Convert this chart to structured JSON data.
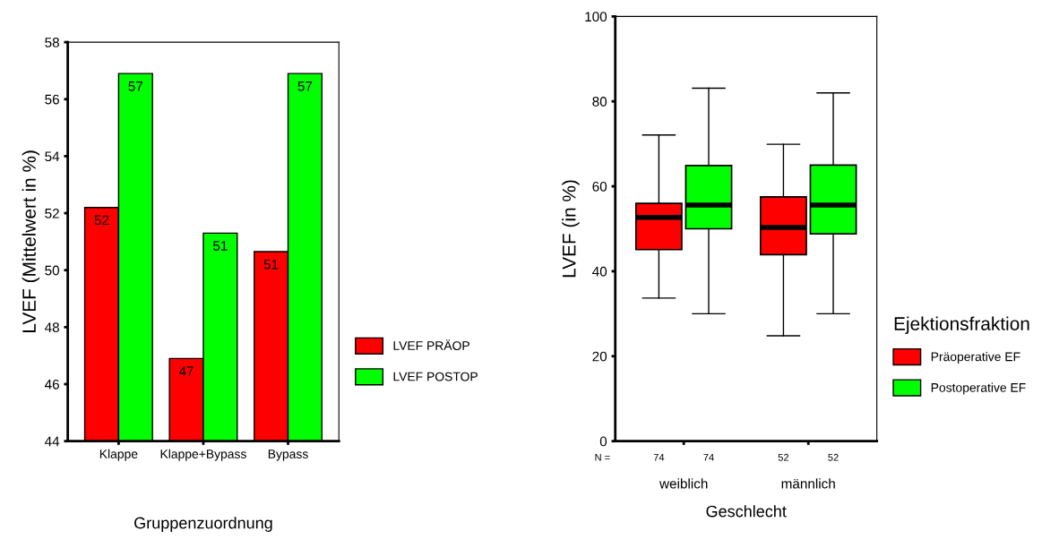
{
  "chart_data": [
    {
      "type": "bar",
      "categories": [
        "Klappe",
        "Klappe+Bypass",
        "Bypass"
      ],
      "ylabel": "LVEF (Mittelwert in %)",
      "xlabel": "Gruppenzuordnung",
      "ylim": [
        44,
        58
      ],
      "yticks": [
        44,
        46,
        48,
        50,
        52,
        54,
        56,
        58
      ],
      "legend": "right",
      "grid": false,
      "series": [
        {
          "name": "LVEF PRÄOP",
          "color": "#ff0000",
          "values": [
            52.2,
            46.9,
            50.65
          ],
          "value_labels": [
            "52",
            "47",
            "51"
          ]
        },
        {
          "name": "LVEF POSTOP",
          "color": "#00ff00",
          "values": [
            56.9,
            51.3,
            56.9
          ],
          "value_labels": [
            "57",
            "51",
            "57"
          ]
        }
      ]
    },
    {
      "type": "box",
      "categories": [
        "weiblich",
        "männlich"
      ],
      "ylabel": "LVEF (in %)",
      "xlabel": "Geschlecht",
      "ylim": [
        0,
        100
      ],
      "yticks": [
        0,
        20,
        40,
        60,
        80,
        100
      ],
      "legend": "right",
      "legend_title": "Ejektionsfraktion",
      "grid": false,
      "annotations": [
        "N =",
        "74",
        "74",
        "52",
        "52"
      ],
      "series": [
        {
          "name": "Präoperative EF",
          "color": "#ff0000",
          "boxes": [
            {
              "low": 33.7,
              "q1": 45.1,
              "median": 52.7,
              "q3": 56,
              "high": 72.1
            },
            {
              "low": 24.8,
              "q1": 43.9,
              "median": 50.3,
              "q3": 57.5,
              "high": 69.9
            }
          ]
        },
        {
          "name": "Postoperative EF",
          "color": "#00ff00",
          "boxes": [
            {
              "low": 30,
              "q1": 50,
              "median": 55.6,
              "q3": 64.9,
              "high": 83.1
            },
            {
              "low": 30,
              "q1": 48.8,
              "median": 55.6,
              "q3": 65,
              "high": 82
            }
          ]
        }
      ]
    }
  ]
}
